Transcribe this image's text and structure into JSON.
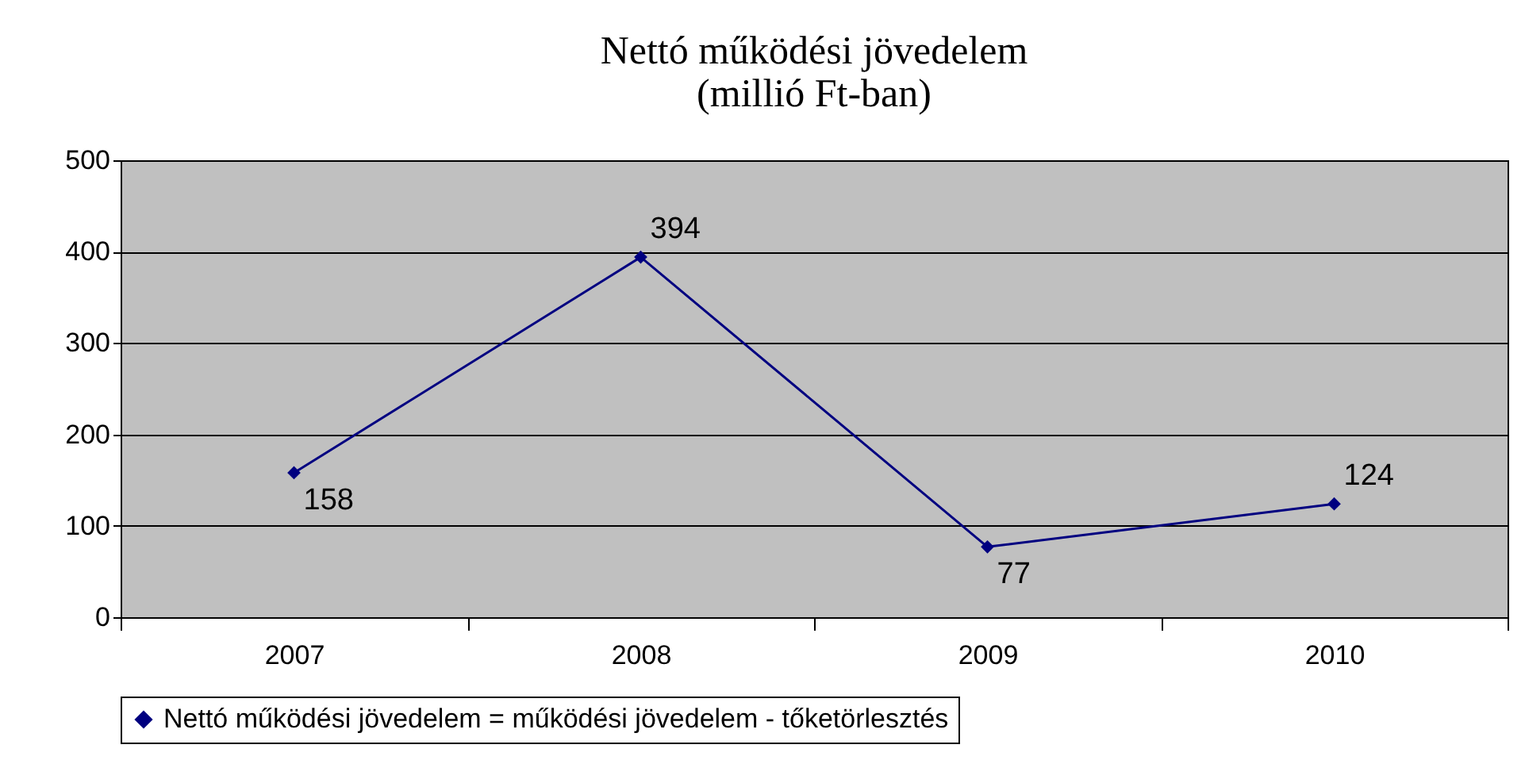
{
  "chart_data": {
    "type": "line",
    "title": "Nettó működési jövedelem\n(millió Ft-ban)",
    "categories": [
      "2007",
      "2008",
      "2009",
      "2010"
    ],
    "series": [
      {
        "name": "Nettó működési jövedelem = működési jövedelem - tőketörlesztés",
        "color": "#000080",
        "values": [
          158,
          394,
          77,
          124
        ]
      }
    ],
    "ylim": [
      0,
      500
    ],
    "yticks": [
      0,
      100,
      200,
      300,
      400,
      500
    ],
    "grid": "y",
    "legend": "bottom",
    "marker": "diamond",
    "line_style": "solid",
    "data_labels": true
  }
}
